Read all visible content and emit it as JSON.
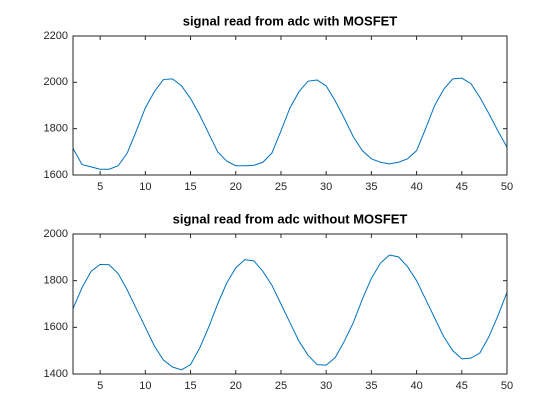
{
  "chart_data": [
    {
      "type": "line",
      "title": "signal read from adc with MOSFET",
      "x": [
        2,
        3,
        4,
        5,
        6,
        7,
        8,
        9,
        10,
        11,
        12,
        13,
        14,
        15,
        16,
        17,
        18,
        19,
        20,
        21,
        22,
        23,
        24,
        25,
        26,
        27,
        28,
        29,
        30,
        31,
        32,
        33,
        34,
        35,
        36,
        37,
        38,
        39,
        40,
        41,
        42,
        43,
        44,
        45,
        46,
        47,
        48,
        49,
        50
      ],
      "values": [
        1715,
        1645,
        1635,
        1625,
        1625,
        1640,
        1695,
        1790,
        1890,
        1960,
        2012,
        2015,
        1985,
        1930,
        1860,
        1780,
        1700,
        1660,
        1640,
        1640,
        1642,
        1655,
        1695,
        1790,
        1890,
        1960,
        2005,
        2010,
        1985,
        1920,
        1845,
        1765,
        1705,
        1670,
        1655,
        1648,
        1655,
        1670,
        1705,
        1800,
        1900,
        1970,
        2015,
        2018,
        1995,
        1935,
        1865,
        1790,
        1720
      ],
      "color": "#0072bd",
      "xlim": [
        2,
        50
      ],
      "xticks": [
        5,
        10,
        15,
        20,
        25,
        30,
        35,
        40,
        45,
        50
      ],
      "ylim": [
        1600,
        2200
      ],
      "yticks": [
        1600,
        1800,
        2000,
        2200
      ]
    },
    {
      "type": "line",
      "title": "signal read from adc without MOSFET",
      "x": [
        2,
        3,
        4,
        5,
        6,
        7,
        8,
        9,
        10,
        11,
        12,
        13,
        14,
        15,
        16,
        17,
        18,
        19,
        20,
        21,
        22,
        23,
        24,
        25,
        26,
        27,
        28,
        29,
        30,
        31,
        32,
        33,
        34,
        35,
        36,
        37,
        38,
        39,
        40,
        41,
        42,
        43,
        44,
        45,
        46,
        47,
        48,
        49,
        50
      ],
      "values": [
        1680,
        1770,
        1840,
        1870,
        1868,
        1830,
        1760,
        1680,
        1600,
        1520,
        1460,
        1430,
        1418,
        1440,
        1510,
        1600,
        1700,
        1790,
        1855,
        1890,
        1885,
        1840,
        1780,
        1700,
        1620,
        1540,
        1480,
        1440,
        1438,
        1470,
        1540,
        1620,
        1720,
        1810,
        1875,
        1910,
        1902,
        1860,
        1800,
        1720,
        1640,
        1560,
        1500,
        1465,
        1468,
        1490,
        1560,
        1650,
        1750
      ],
      "color": "#0072bd",
      "xlim": [
        2,
        50
      ],
      "xticks": [
        5,
        10,
        15,
        20,
        25,
        30,
        35,
        40,
        45,
        50
      ],
      "ylim": [
        1400,
        2000
      ],
      "yticks": [
        1400,
        1600,
        1800,
        2000
      ]
    }
  ]
}
